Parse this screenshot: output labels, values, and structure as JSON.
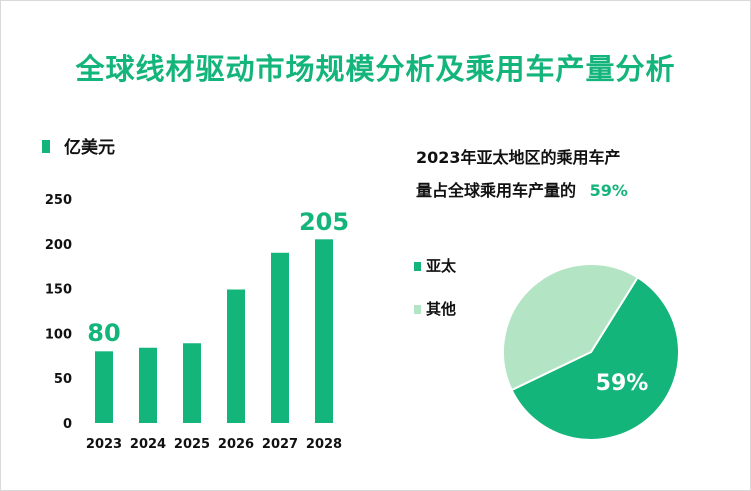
{
  "title": "全球线材驱动市场规模分析及乘用车产量分析",
  "colors": {
    "primary": "#13b57a",
    "light": "#b3e4c3",
    "text": "#111111"
  },
  "chart_data": [
    {
      "type": "bar",
      "legend": "亿美元",
      "categories": [
        "2023",
        "2024",
        "2025",
        "2026",
        "2027",
        "2028"
      ],
      "values": [
        80,
        84,
        89,
        149,
        190,
        205
      ],
      "ylim": [
        0,
        250
      ],
      "yticks": [
        "0",
        "50",
        "100",
        "150",
        "200",
        "250"
      ],
      "data_labels": {
        "first": "80",
        "last": "205"
      },
      "grid": false
    },
    {
      "type": "pie",
      "title_line1": "2023年亚太地区的乘用车产",
      "title_line2": "量占全球乘用车产量的",
      "title_highlight": "59%",
      "slices": [
        {
          "label": "亚太",
          "value": 59
        },
        {
          "label": "其他",
          "value": 41
        }
      ],
      "data_label": "59%"
    }
  ]
}
